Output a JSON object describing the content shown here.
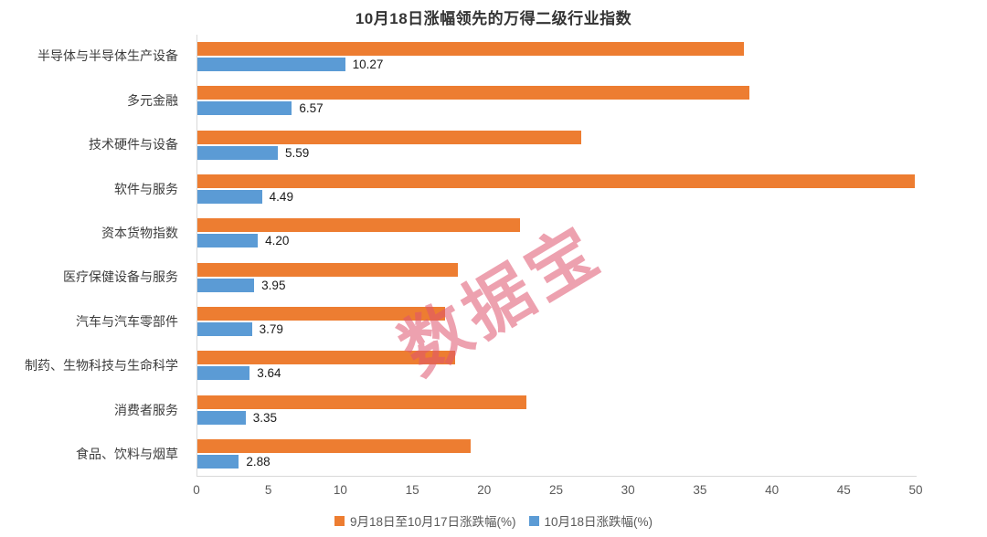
{
  "chart_data": {
    "type": "bar",
    "orientation": "horizontal",
    "title": "10月18日涨幅领先的万得二级行业指数",
    "categories": [
      "半导体与半导体生产设备",
      "多元金融",
      "技术硬件与设备",
      "软件与服务",
      "资本货物指数",
      "医疗保健设备与服务",
      "汽车与汽车零部件",
      "制药、生物科技与生命科学",
      "消费者服务",
      "食品、饮料与烟草"
    ],
    "series": [
      {
        "name": "9月18日至10月17日涨跌幅(%)",
        "color": "#ED7D31",
        "values": [
          38.0,
          38.4,
          26.7,
          49.9,
          22.4,
          18.1,
          17.2,
          17.9,
          22.9,
          19.0
        ],
        "value_labels_visible": false
      },
      {
        "name": "10月18日涨跌幅(%)",
        "color": "#5B9BD5",
        "values": [
          10.27,
          6.57,
          5.59,
          4.49,
          4.2,
          3.95,
          3.79,
          3.64,
          3.35,
          2.88
        ],
        "value_labels_visible": true
      }
    ],
    "xlim": [
      0,
      50
    ],
    "x_ticks": [
      0,
      5,
      10,
      15,
      20,
      25,
      30,
      35,
      40,
      45,
      50
    ],
    "legend_position": "bottom",
    "grid": false,
    "axis_color": "#d9d9d9"
  },
  "watermark": {
    "text": "数据宝",
    "color": "#E0556F"
  }
}
